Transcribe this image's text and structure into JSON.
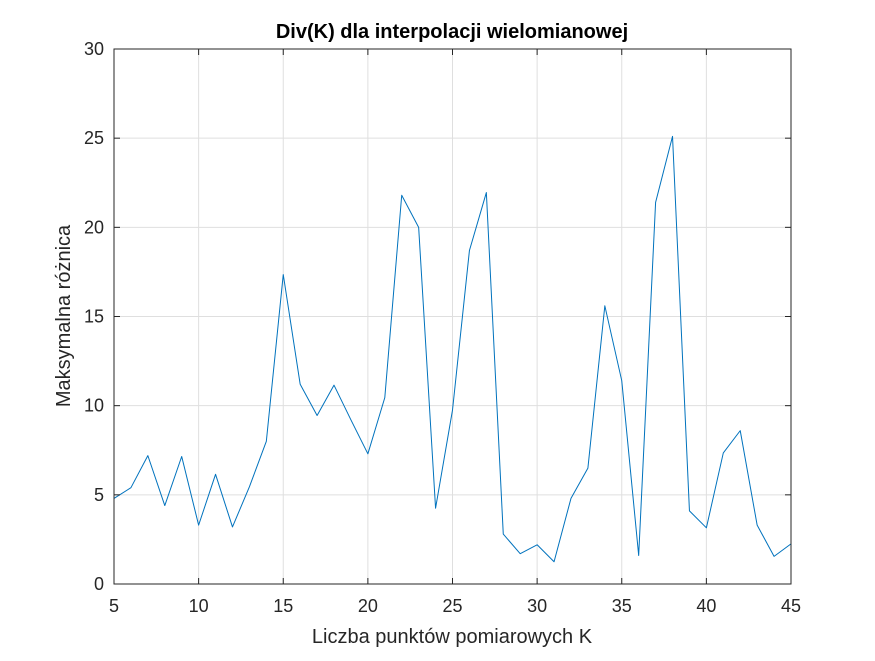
{
  "chart_data": {
    "type": "line",
    "title": "Div(K) dla interpolacji wielomianowej",
    "xlabel": "Liczba punktów pomiarowych K",
    "ylabel": "Maksymalna różnica",
    "xlim": [
      5,
      45
    ],
    "ylim": [
      0,
      30
    ],
    "xticks": [
      5,
      10,
      15,
      20,
      25,
      30,
      35,
      40,
      45
    ],
    "yticks": [
      0,
      5,
      10,
      15,
      20,
      25,
      30
    ],
    "grid": true,
    "series": [
      {
        "color": "#0072BD",
        "x": [
          5,
          6,
          7,
          8,
          9,
          10,
          11,
          12,
          13,
          14,
          15,
          16,
          17,
          18,
          19,
          20,
          21,
          22,
          23,
          24,
          25,
          26,
          27,
          28,
          29,
          30,
          31,
          32,
          33,
          34,
          35,
          36,
          37,
          38,
          39,
          40,
          41,
          42,
          43,
          44,
          45
        ],
        "y": [
          4.8,
          5.4,
          7.2,
          4.4,
          7.15,
          3.3,
          6.15,
          3.2,
          5.45,
          8.0,
          17.35,
          11.2,
          9.45,
          11.15,
          9.2,
          7.3,
          10.45,
          21.8,
          20.0,
          4.25,
          9.75,
          18.7,
          21.95,
          2.8,
          1.7,
          2.2,
          1.25,
          4.8,
          6.5,
          15.6,
          11.4,
          1.6,
          21.4,
          25.1,
          4.1,
          3.15,
          7.35,
          8.6,
          3.3,
          1.55,
          2.25
        ]
      }
    ]
  }
}
